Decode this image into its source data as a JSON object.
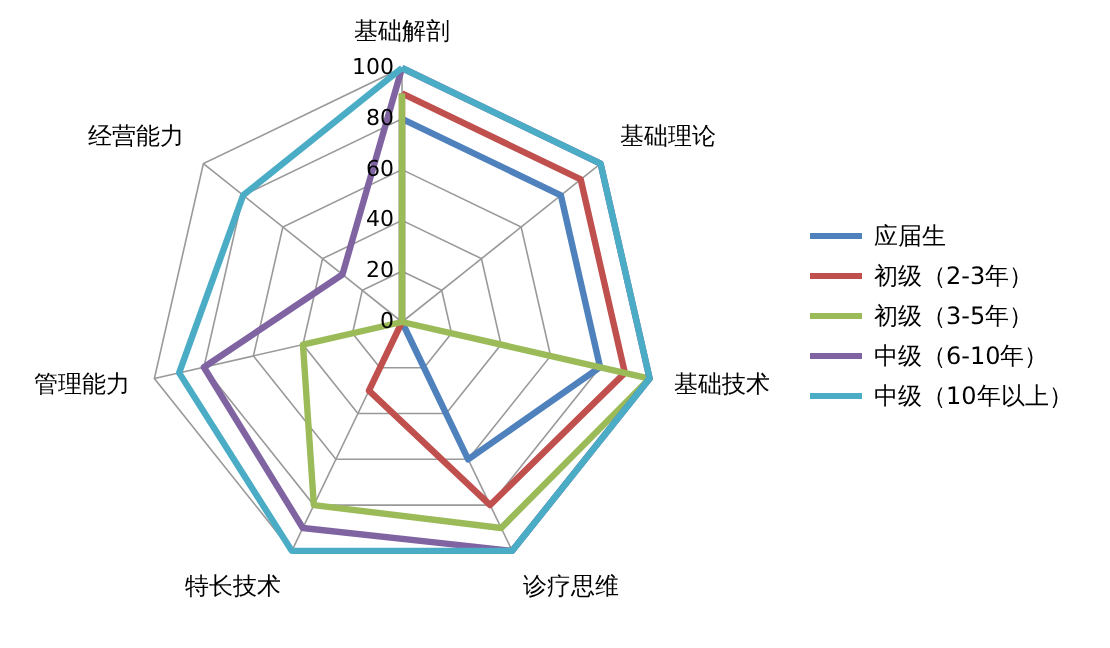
{
  "chart_data": {
    "type": "radar",
    "categories": [
      "基础解剖",
      "基础理论",
      "基础技术",
      "诊疗思维",
      "特长技术",
      "管理能力",
      "经营能力"
    ],
    "ylim": [
      0,
      100
    ],
    "yticks": [
      0,
      20,
      40,
      60,
      80,
      100
    ],
    "grid": true,
    "legend": "right",
    "marker": "none",
    "series": [
      {
        "name": "应届生",
        "color": "#4f81bd",
        "values": [
          80,
          80,
          80,
          60,
          0,
          0,
          0
        ]
      },
      {
        "name": "初级（2-3年）",
        "color": "#c0504d",
        "values": [
          90,
          90,
          90,
          80,
          30,
          0,
          0
        ]
      },
      {
        "name": "初级（3-5年）",
        "color": "#9bbb59",
        "values": [
          90,
          0,
          100,
          90,
          80,
          40,
          0
        ]
      },
      {
        "name": "中级（6-10年）",
        "color": "#8064a2",
        "values": [
          100,
          100,
          100,
          100,
          90,
          80,
          30
        ]
      },
      {
        "name": "中级（10年以上）",
        "color": "#4bacc6",
        "values": [
          100,
          100,
          100,
          100,
          100,
          90,
          80
        ]
      }
    ]
  }
}
